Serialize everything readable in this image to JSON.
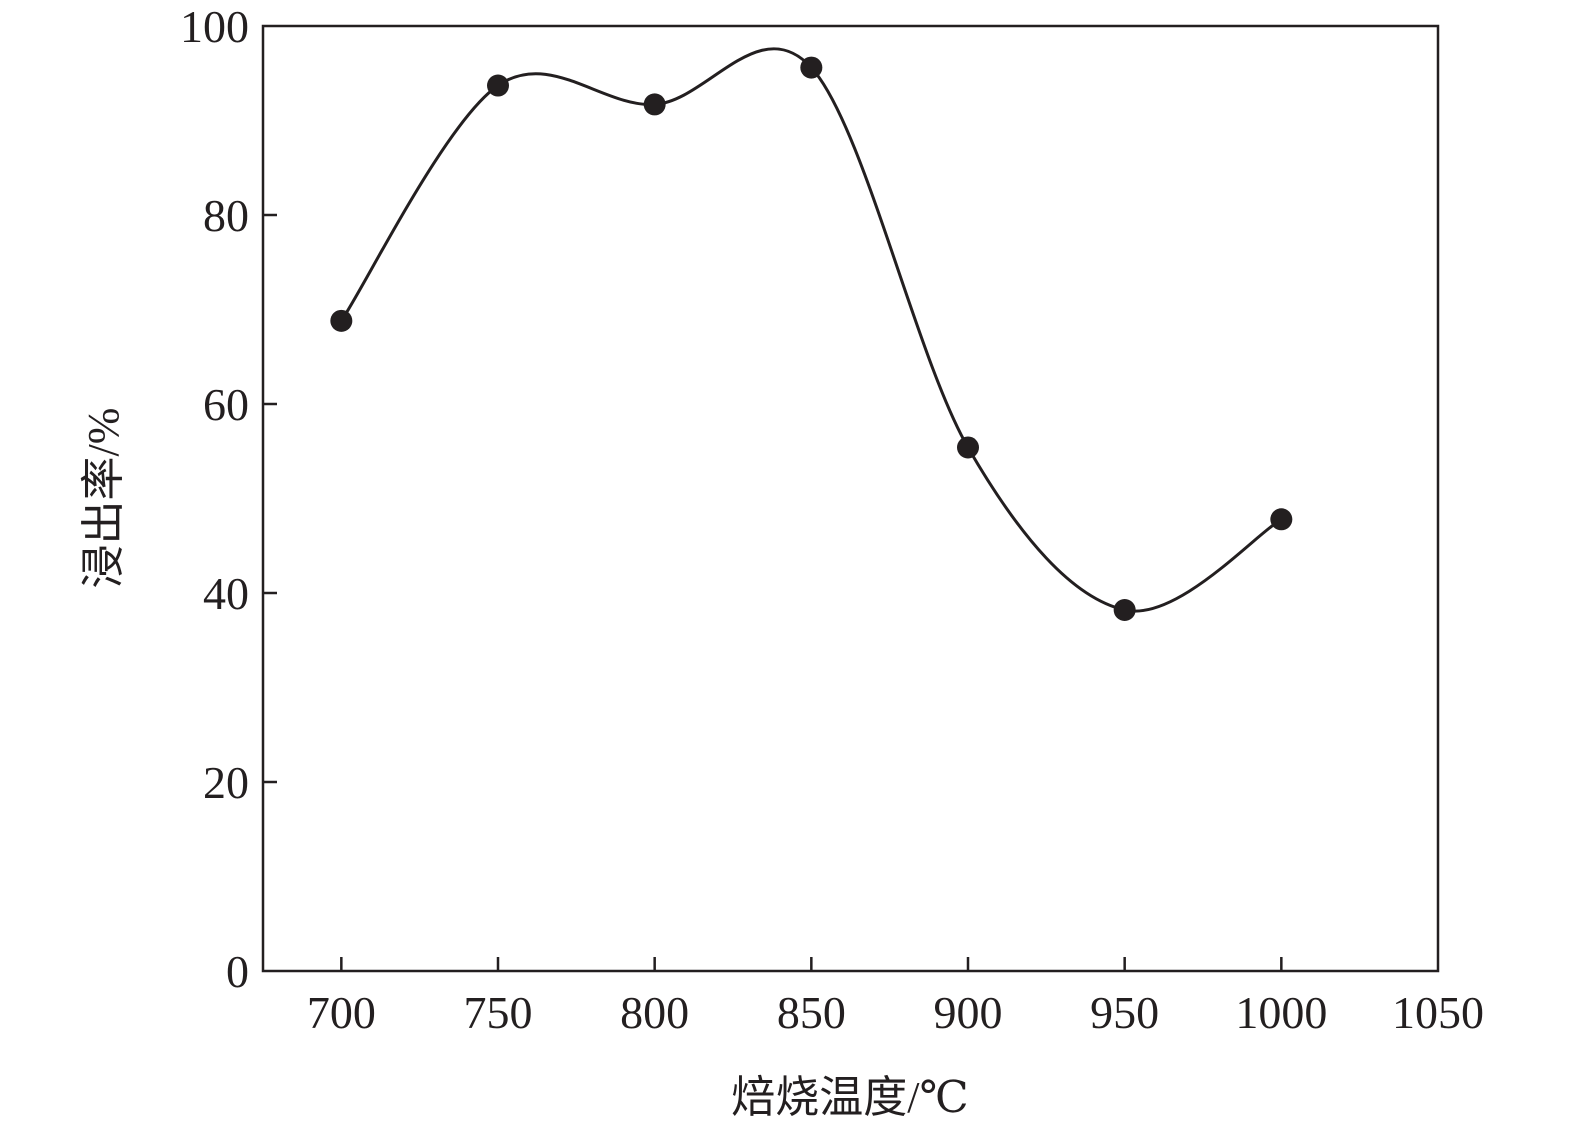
{
  "chart_data": {
    "type": "line",
    "title": "",
    "xlabel": "焙烧温度/℃",
    "ylabel": "浸出率/%",
    "xlim": [
      675,
      1050
    ],
    "ylim": [
      0,
      100
    ],
    "xticks": [
      700,
      750,
      800,
      850,
      900,
      950,
      1000,
      1050
    ],
    "yticks": [
      0,
      20,
      40,
      60,
      80,
      100
    ],
    "grid": false,
    "smooth": true,
    "marker": "filled-circle",
    "color": "#231f20",
    "series": [
      {
        "x": [
          700,
          750,
          800,
          850,
          900,
          950,
          1000
        ],
        "values": [
          68.8,
          93.7,
          91.7,
          95.6,
          55.4,
          38.2,
          47.8
        ]
      }
    ]
  }
}
